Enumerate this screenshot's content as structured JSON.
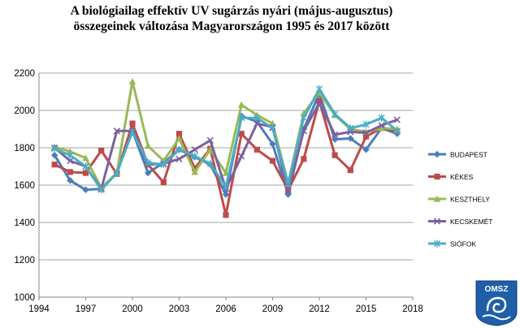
{
  "title_line1": "A biológiailag  effektív UV sugárzás nyári (május-augusztus)",
  "title_line2": "összegeinek változása Magyarországon 1995 és 2017 között",
  "logo_text": "OMSZ",
  "chart_data": {
    "type": "line",
    "title": "A biológiailag  effektív UV sugárzás nyári (május-augusztus) összegeinek változása Magyarországon 1995 és 2017 között",
    "xlabel": "",
    "ylabel": "",
    "xlim": [
      1994,
      2018
    ],
    "ylim": [
      1000,
      2200
    ],
    "x_ticks": [
      "1994",
      "1997",
      "2000",
      "2003",
      "2006",
      "2009",
      "2012",
      "2015",
      "2018"
    ],
    "y_ticks": [
      "1000",
      "1200",
      "1400",
      "1600",
      "1800",
      "2000",
      "2200"
    ],
    "grid": "horizontal",
    "legend_position": "right",
    "x": [
      1995,
      1996,
      1997,
      1998,
      1999,
      2000,
      2001,
      2002,
      2003,
      2004,
      2005,
      2006,
      2007,
      2008,
      2009,
      2010,
      2011,
      2012,
      2013,
      2014,
      2015,
      2016,
      2017
    ],
    "series": [
      {
        "name": "BUDAPEST",
        "color": "#4a7ebb",
        "marker": "diamond",
        "values": [
          1760,
          1625,
          1575,
          1580,
          1665,
          1890,
          1665,
          1720,
          1790,
          1750,
          1710,
          1550,
          1970,
          1940,
          1820,
          1550,
          1900,
          2090,
          1845,
          1850,
          1790,
          1905,
          1875
        ]
      },
      {
        "name": "KÉKES",
        "color": "#be4b48",
        "marker": "square",
        "values": [
          1710,
          1670,
          1665,
          1785,
          1660,
          1930,
          1710,
          1615,
          1875,
          1690,
          1795,
          1440,
          1875,
          1790,
          1730,
          1575,
          1740,
          2050,
          1760,
          1680,
          1860,
          1905,
          1890
        ]
      },
      {
        "name": "KESZTHELY",
        "color": "#98b954",
        "marker": "triangle",
        "values": [
          1805,
          1780,
          1745,
          1585,
          1665,
          2155,
          1810,
          1730,
          1850,
          1670,
          1790,
          1665,
          2030,
          1975,
          1930,
          1610,
          1985,
          2095,
          1975,
          1900,
          1885,
          1905,
          1900
        ]
      },
      {
        "name": "KECSKEMÉT",
        "color": "#7d60a0",
        "marker": "x",
        "values": [
          1800,
          1730,
          1700,
          1580,
          1890,
          1890,
          1710,
          1715,
          1740,
          1790,
          1840,
          1580,
          1755,
          1930,
          1910,
          1570,
          1890,
          2040,
          1870,
          1885,
          1880,
          1920,
          1950
        ]
      },
      {
        "name": "SIÓFOK",
        "color": "#4bacc6",
        "marker": "asterisk",
        "values": [
          1795,
          1760,
          1700,
          1575,
          1665,
          1885,
          1720,
          1710,
          1790,
          1755,
          1715,
          1590,
          1960,
          1960,
          1905,
          1605,
          1960,
          2115,
          1980,
          1905,
          1925,
          1960,
          1890
        ]
      }
    ]
  }
}
